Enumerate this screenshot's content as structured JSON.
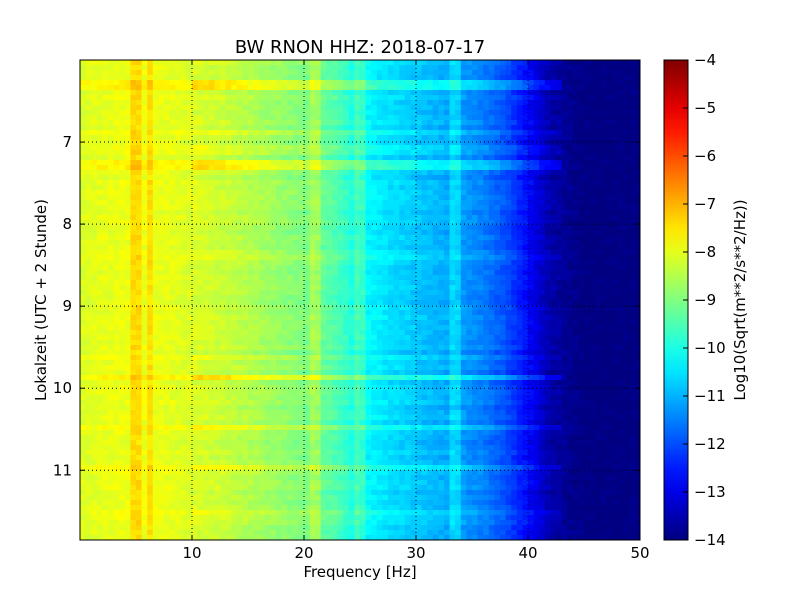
{
  "chart_data": {
    "type": "heatmap",
    "title": "BW RNON HHZ: 2018-07-17",
    "xlabel": "Frequency [Hz]",
    "ylabel": "Lokalzeit (UTC + 2 Stunde)",
    "xlim": [
      0,
      50
    ],
    "ylim": [
      11.85,
      6.0
    ],
    "y_axis_inverted": true,
    "x_ticks": [
      10,
      20,
      30,
      40,
      50
    ],
    "x_tick_labels": [
      "10",
      "20",
      "30",
      "40",
      "50"
    ],
    "y_ticks": [
      7,
      8,
      9,
      10,
      11
    ],
    "y_tick_labels": [
      "7",
      "8",
      "9",
      "10",
      "11"
    ],
    "grid": true,
    "colormap": "jet",
    "colorbar": {
      "label": "Log10(Sqrt(m**2/s**2/Hz))",
      "range": [
        -14,
        -4
      ],
      "ticks": [
        -4,
        -5,
        -6,
        -7,
        -8,
        -9,
        -10,
        -11,
        -12,
        -13,
        -14
      ],
      "tick_labels": [
        "−4",
        "−5",
        "−6",
        "−7",
        "−8",
        "−9",
        "−10",
        "−11",
        "−12",
        "−13",
        "−14"
      ]
    },
    "spectrum_profile": {
      "frequency_hz": [
        0,
        2,
        5,
        8,
        10,
        13,
        16,
        20,
        23,
        25,
        28,
        30,
        33,
        36,
        38,
        40,
        42,
        45,
        50
      ],
      "log10_amplitude": [
        -8.1,
        -8.0,
        -7.9,
        -8.0,
        -8.1,
        -8.3,
        -8.6,
        -9.0,
        -9.5,
        -10.2,
        -10.6,
        -10.8,
        -11.1,
        -11.5,
        -12.0,
        -12.7,
        -13.6,
        -14.0,
        -14.0
      ]
    },
    "features": {
      "narrow_lines_hz": [
        5.0,
        6.2,
        21.0,
        25.0,
        33.5
      ],
      "strong_horizontal_bands_h": [
        6.3,
        7.28,
        9.88
      ],
      "weaker_horizontal_bands_h": [
        6.9,
        7.1,
        8.4,
        9.6,
        10.5,
        10.95,
        11.5
      ]
    }
  }
}
